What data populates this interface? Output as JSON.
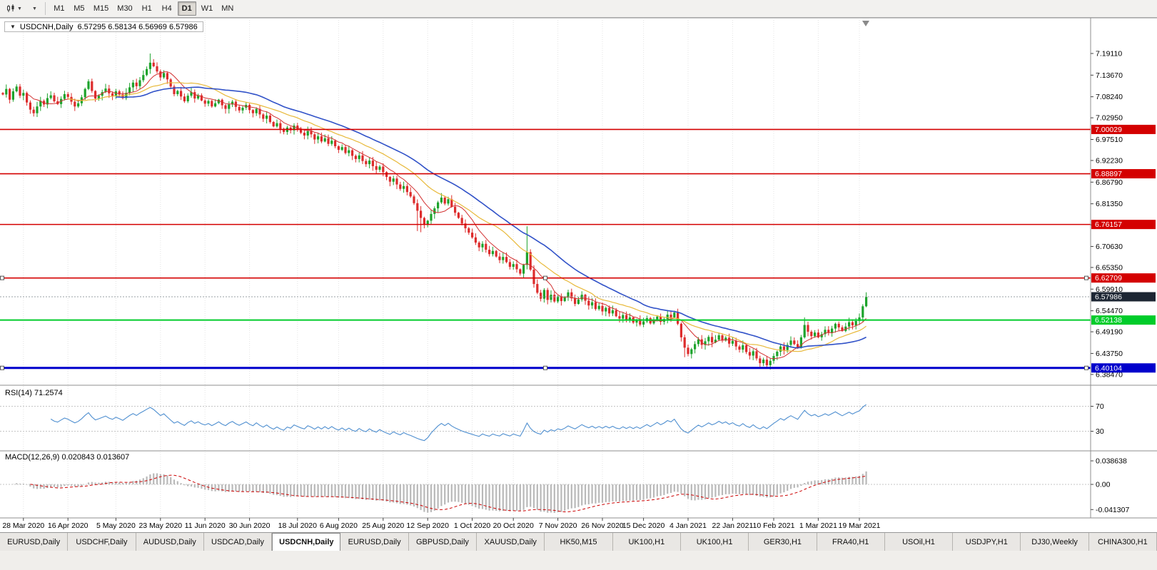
{
  "toolbar": {
    "timeframes": [
      "M1",
      "M5",
      "M15",
      "M30",
      "H1",
      "H4",
      "D1",
      "W1",
      "MN"
    ],
    "active_timeframe": "D1"
  },
  "chart_header": {
    "collapse_icon": "▼",
    "title": "USDCNH,Daily",
    "ohlc": "6.57295 6.58134 6.56969 6.57986"
  },
  "indicators": {
    "rsi_label": "RSI(14) 71.2574",
    "macd_label": "MACD(12,26,9) 0.020843 0.013607"
  },
  "bottom_tabs": {
    "active_index": 4,
    "items": [
      "EURUSD,Daily",
      "USDCHF,Daily",
      "AUDUSD,Daily",
      "USDCAD,Daily",
      "USDCNH,Daily",
      "EURUSD,Daily",
      "GBPUSD,Daily",
      "XAUUSD,Daily",
      "HK50,M15",
      "UK100,H1",
      "UK100,H1",
      "GER30,H1",
      "FRA40,H1",
      "USOil,H1",
      "USDJPY,H1",
      "DJ30,Weekly",
      "CHINA300,H1"
    ]
  },
  "chart_data": {
    "type": "candlestick",
    "symbol": "USDCNH",
    "timeframe": "Daily",
    "current_ohlc": {
      "open": 6.57295,
      "high": 6.58134,
      "low": 6.56969,
      "close": 6.57986
    },
    "ylim": [
      6.3612,
      7.2753
    ],
    "price_axis_ticks": [
      "7.19110",
      "7.13670",
      "7.08240",
      "7.02950",
      "6.97510",
      "6.92230",
      "6.86790",
      "6.81350",
      "6.76060",
      "6.70630",
      "6.65350",
      "6.59910",
      "6.54470",
      "6.49190",
      "6.43750",
      "6.38470"
    ],
    "x_tick_labels": [
      "28 Mar 2020",
      "16 Apr 2020",
      "5 May 2020",
      "23 May 2020",
      "11 Jun 2020",
      "30 Jun 2020",
      "18 Jul 2020",
      "6 Aug 2020",
      "25 Aug 2020",
      "12 Sep 2020",
      "1 Oct 2020",
      "20 Oct 2020",
      "7 Nov 2020",
      "26 Nov 2020",
      "15 Dec 2020",
      "4 Jan 2021",
      "22 Jan 2021",
      "10 Feb 2021",
      "1 Mar 2021",
      "19 Mar 2021"
    ],
    "x_tick_indices": [
      6,
      19,
      33,
      46,
      59,
      72,
      86,
      98,
      111,
      124,
      137,
      149,
      162,
      175,
      187,
      200,
      213,
      225,
      238,
      250
    ],
    "closes": [
      7.088,
      7.102,
      7.075,
      7.096,
      7.108,
      7.085,
      7.092,
      7.068,
      7.05,
      7.041,
      7.058,
      7.072,
      7.063,
      7.079,
      7.086,
      7.071,
      7.064,
      7.077,
      7.089,
      7.082,
      7.07,
      7.058,
      7.066,
      7.081,
      7.102,
      7.121,
      7.097,
      7.078,
      7.085,
      7.094,
      7.103,
      7.091,
      7.084,
      7.096,
      7.088,
      7.079,
      7.092,
      7.106,
      7.118,
      7.109,
      7.124,
      7.137,
      7.152,
      7.168,
      7.159,
      7.146,
      7.131,
      7.142,
      7.126,
      7.108,
      7.089,
      7.097,
      7.083,
      7.071,
      7.085,
      7.094,
      7.078,
      7.086,
      7.073,
      7.065,
      7.072,
      7.058,
      7.066,
      7.075,
      7.061,
      7.052,
      7.063,
      7.07,
      7.057,
      7.048,
      7.055,
      7.062,
      7.049,
      7.041,
      7.052,
      7.038,
      7.027,
      7.035,
      7.019,
      7.008,
      7.016,
      7.002,
      6.994,
      7.005,
      6.998,
      7.01,
      7.001,
      6.992,
      6.985,
      6.996,
      6.988,
      6.975,
      6.983,
      6.97,
      6.978,
      6.964,
      6.972,
      6.958,
      6.949,
      6.956,
      6.941,
      6.948,
      6.934,
      6.926,
      6.935,
      6.921,
      6.913,
      6.922,
      6.908,
      6.899,
      6.907,
      6.893,
      6.881,
      6.869,
      6.877,
      6.862,
      6.851,
      6.858,
      6.843,
      6.832,
      6.815,
      6.796,
      6.778,
      6.762,
      6.771,
      6.788,
      6.802,
      6.817,
      6.829,
      6.814,
      6.825,
      6.806,
      6.791,
      6.778,
      6.764,
      6.752,
      6.741,
      6.729,
      6.716,
      6.704,
      6.713,
      6.698,
      6.687,
      6.695,
      6.681,
      6.672,
      6.68,
      6.667,
      6.655,
      6.662,
      6.649,
      6.638,
      6.66,
      6.692,
      6.648,
      6.612,
      6.59,
      6.575,
      6.597,
      6.572,
      6.585,
      6.568,
      6.581,
      6.569,
      6.578,
      6.591,
      6.576,
      6.562,
      6.573,
      6.585,
      6.57,
      6.558,
      6.566,
      6.549,
      6.557,
      6.543,
      6.552,
      6.538,
      6.546,
      6.531,
      6.525,
      6.534,
      6.521,
      6.528,
      6.515,
      6.522,
      6.51,
      6.518,
      6.526,
      6.513,
      6.521,
      6.53,
      6.517,
      6.524,
      6.535,
      6.528,
      6.54,
      6.512,
      6.478,
      6.452,
      6.436,
      6.448,
      6.461,
      6.473,
      6.459,
      6.468,
      6.479,
      6.465,
      6.472,
      6.483,
      6.47,
      6.477,
      6.462,
      6.469,
      6.455,
      6.447,
      6.458,
      6.441,
      6.432,
      6.443,
      6.425,
      6.413,
      6.422,
      6.408,
      6.419,
      6.431,
      6.442,
      6.455,
      6.446,
      6.459,
      6.47,
      6.461,
      6.452,
      6.478,
      6.509,
      6.492,
      6.481,
      6.49,
      6.478,
      6.486,
      6.497,
      6.489,
      6.5,
      6.512,
      6.503,
      6.494,
      6.505,
      6.516,
      6.508,
      6.519,
      6.528,
      6.556,
      6.58
    ],
    "wick_overrides": {
      "43": {
        "h": 7.1911
      },
      "121": {
        "l": 6.745
      },
      "122": {
        "l": 6.742
      },
      "153": {
        "h": 6.757
      },
      "199": {
        "l": 6.428
      },
      "221": {
        "l": 6.404
      },
      "223": {
        "l": 6.40104
      },
      "234": {
        "h": 6.528
      },
      "252": {
        "h": 6.5911
      }
    },
    "candle_colors": {
      "up": "#1ea32c",
      "down": "#dd2c2c"
    },
    "moving_averages": [
      {
        "period": 8,
        "color": "#d23030",
        "width": 1
      },
      {
        "period": 20,
        "color": "#e8b93a",
        "width": 1.2
      },
      {
        "period": 34,
        "color": "#3152c8",
        "width": 1.6
      }
    ],
    "horizontal_levels": [
      {
        "price": 7.00029,
        "label": "7.00029",
        "color": "#d40000",
        "width": 1.6,
        "handles": false
      },
      {
        "price": 6.88897,
        "label": "6.88897",
        "color": "#d40000",
        "width": 1.6,
        "handles": false
      },
      {
        "price": 6.76157,
        "label": "6.76157",
        "color": "#d40000",
        "width": 1.6,
        "handles": false
      },
      {
        "price": 6.62709,
        "label": "6.62709",
        "color": "#d40000",
        "width": 1.6,
        "handles": true
      },
      {
        "price": 6.52138,
        "label": "6.52138",
        "color": "#00cc2a",
        "width": 2,
        "handles": false
      },
      {
        "price": 6.40104,
        "label": "6.40104",
        "color": "#0000cc",
        "width": 3,
        "handles": true
      }
    ],
    "bid_line": {
      "price": 6.57986,
      "label": "6.57986",
      "badge_color": "#1d2633"
    },
    "rsi": {
      "period": 14,
      "current": 71.2574,
      "levels": [
        70,
        30
      ],
      "line_color": "#4f8fd0"
    },
    "macd": {
      "fast": 12,
      "slow": 26,
      "signal": 9,
      "main_current": 0.020843,
      "signal_current": 0.013607,
      "axis_labels": [
        "0.038638",
        "0.00",
        "-0.041307"
      ],
      "axis_values": [
        0.038638,
        0,
        -0.041307
      ],
      "histogram_color": "#b9b9b9",
      "signal_color": "#cc0000"
    }
  }
}
